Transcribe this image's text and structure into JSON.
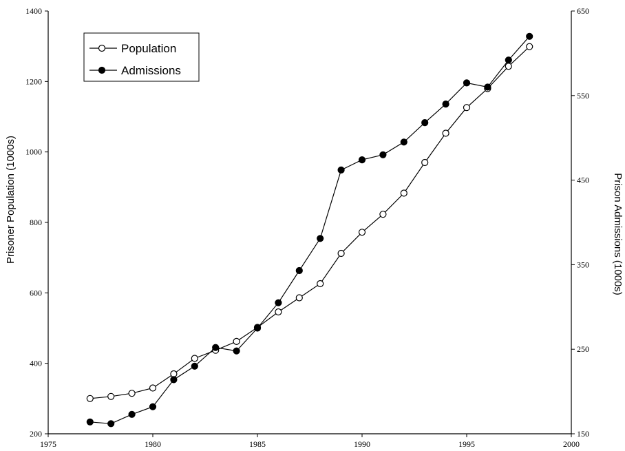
{
  "chart_data": {
    "type": "line",
    "x": [
      1977,
      1978,
      1979,
      1980,
      1981,
      1982,
      1983,
      1984,
      1985,
      1986,
      1987,
      1988,
      1989,
      1990,
      1991,
      1992,
      1993,
      1994,
      1995,
      1996,
      1997,
      1998
    ],
    "series": [
      {
        "name": "Population",
        "axis": "left",
        "marker": "open-circle",
        "values": [
          300,
          306,
          315,
          330,
          370,
          414,
          437,
          462,
          502,
          546,
          586,
          626,
          712,
          772,
          823,
          883,
          970,
          1053,
          1126,
          1180,
          1243,
          1299
        ]
      },
      {
        "name": "Admissions",
        "axis": "right",
        "marker": "filled-circle",
        "values": [
          164,
          162,
          173,
          182,
          214,
          230,
          252,
          248,
          275,
          305,
          343,
          381,
          462,
          474,
          480,
          495,
          518,
          540,
          565,
          560,
          592,
          620
        ]
      }
    ],
    "xlim": [
      1975,
      2000
    ],
    "xticks": [
      "1975",
      "1980",
      "1985",
      "1990",
      "1995",
      "2000"
    ],
    "ylim_left": [
      200,
      1400
    ],
    "yticks_left": [
      "200",
      "400",
      "600",
      "800",
      "1000",
      "1200",
      "1400"
    ],
    "ylim_right": [
      150,
      650
    ],
    "yticks_right": [
      "150",
      "250",
      "350",
      "450",
      "550",
      "650"
    ],
    "ylabel_left": "Prisoner Population (1000s)",
    "ylabel_right": "Prison Admissions (1000s)",
    "legend": [
      "Population",
      "Admissions"
    ],
    "legend_placement": "top-left",
    "grid": false
  }
}
